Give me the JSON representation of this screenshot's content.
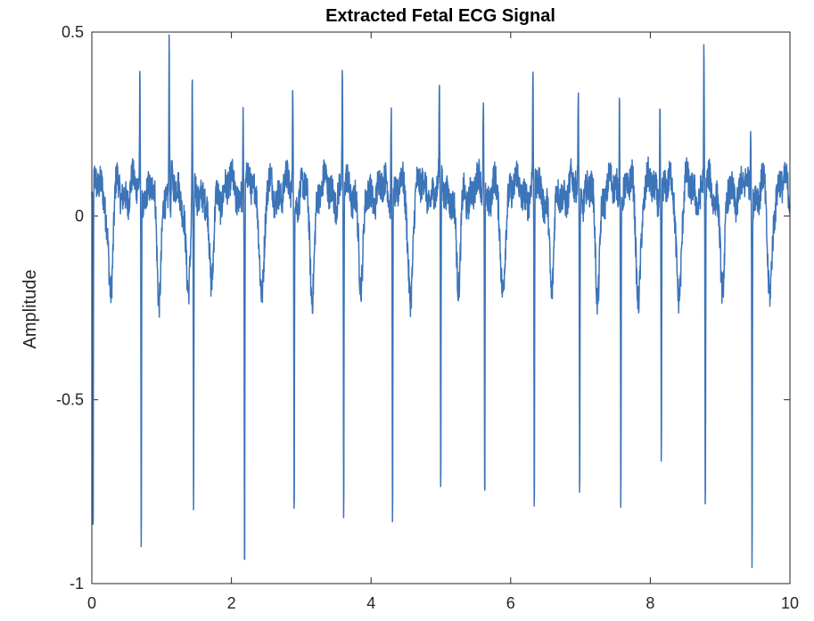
{
  "chart_data": {
    "type": "line",
    "title": "Extracted Fetal ECG Signal",
    "xlabel": "",
    "ylabel": "Amplitude",
    "xlim": [
      0,
      10
    ],
    "ylim": [
      -1,
      0.5
    ],
    "xticks": [
      0,
      2,
      4,
      6,
      8,
      10
    ],
    "yticks": [
      -1,
      -0.5,
      0,
      0.5
    ],
    "xtick_labels": [
      "0",
      "2",
      "4",
      "6",
      "8",
      "10"
    ],
    "ytick_labels": [
      "-1",
      "-0.5",
      "0",
      "0.5"
    ],
    "grid": false,
    "line_color": "#3c74b8",
    "beats": [
      {
        "t": 0.01,
        "peak": 0.05,
        "trough": -0.93
      },
      {
        "t": 0.7,
        "peak": 0.35,
        "trough": -0.9
      },
      {
        "t": 1.12,
        "peak": 0.46,
        "trough": -0.05
      },
      {
        "t": 1.45,
        "peak": 0.37,
        "trough": -0.88
      },
      {
        "t": 2.18,
        "peak": 0.31,
        "trough": -1.0
      },
      {
        "t": 2.89,
        "peak": 0.38,
        "trough": -0.88
      },
      {
        "t": 3.6,
        "peak": 0.35,
        "trough": -0.87
      },
      {
        "t": 4.3,
        "peak": 0.33,
        "trough": -0.88
      },
      {
        "t": 4.99,
        "peak": 0.32,
        "trough": -0.8
      },
      {
        "t": 5.62,
        "peak": 0.34,
        "trough": -0.81
      },
      {
        "t": 6.33,
        "peak": 0.35,
        "trough": -0.84
      },
      {
        "t": 6.98,
        "peak": 0.35,
        "trough": -0.8
      },
      {
        "t": 7.57,
        "peak": 0.35,
        "trough": -0.78
      },
      {
        "t": 8.15,
        "peak": 0.32,
        "trough": -0.68
      },
      {
        "t": 8.78,
        "peak": 0.43,
        "trough": -0.86
      },
      {
        "t": 9.45,
        "peak": 0.3,
        "trough": -0.92
      }
    ],
    "baseline_offset": 0.07,
    "t_wave_depth": -0.28
  }
}
